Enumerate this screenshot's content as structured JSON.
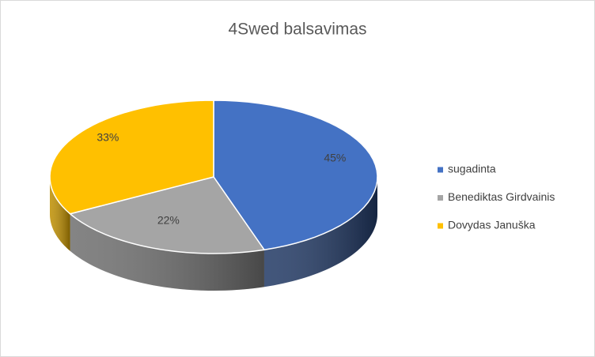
{
  "chart_data": {
    "type": "pie3d",
    "title": "4Swed balsavimas",
    "categories": [
      "sugadinta",
      "Benediktas Girdvainis",
      "Dovydas Januška"
    ],
    "values": [
      45,
      22,
      33
    ],
    "value_labels": [
      "45%",
      "22%",
      "33%"
    ],
    "colors": [
      "#4472c4",
      "#a5a5a5",
      "#ffc000"
    ],
    "side_colors": [
      "#203864",
      "#6e6e6e",
      "#bf8f00"
    ],
    "legend": "right"
  }
}
